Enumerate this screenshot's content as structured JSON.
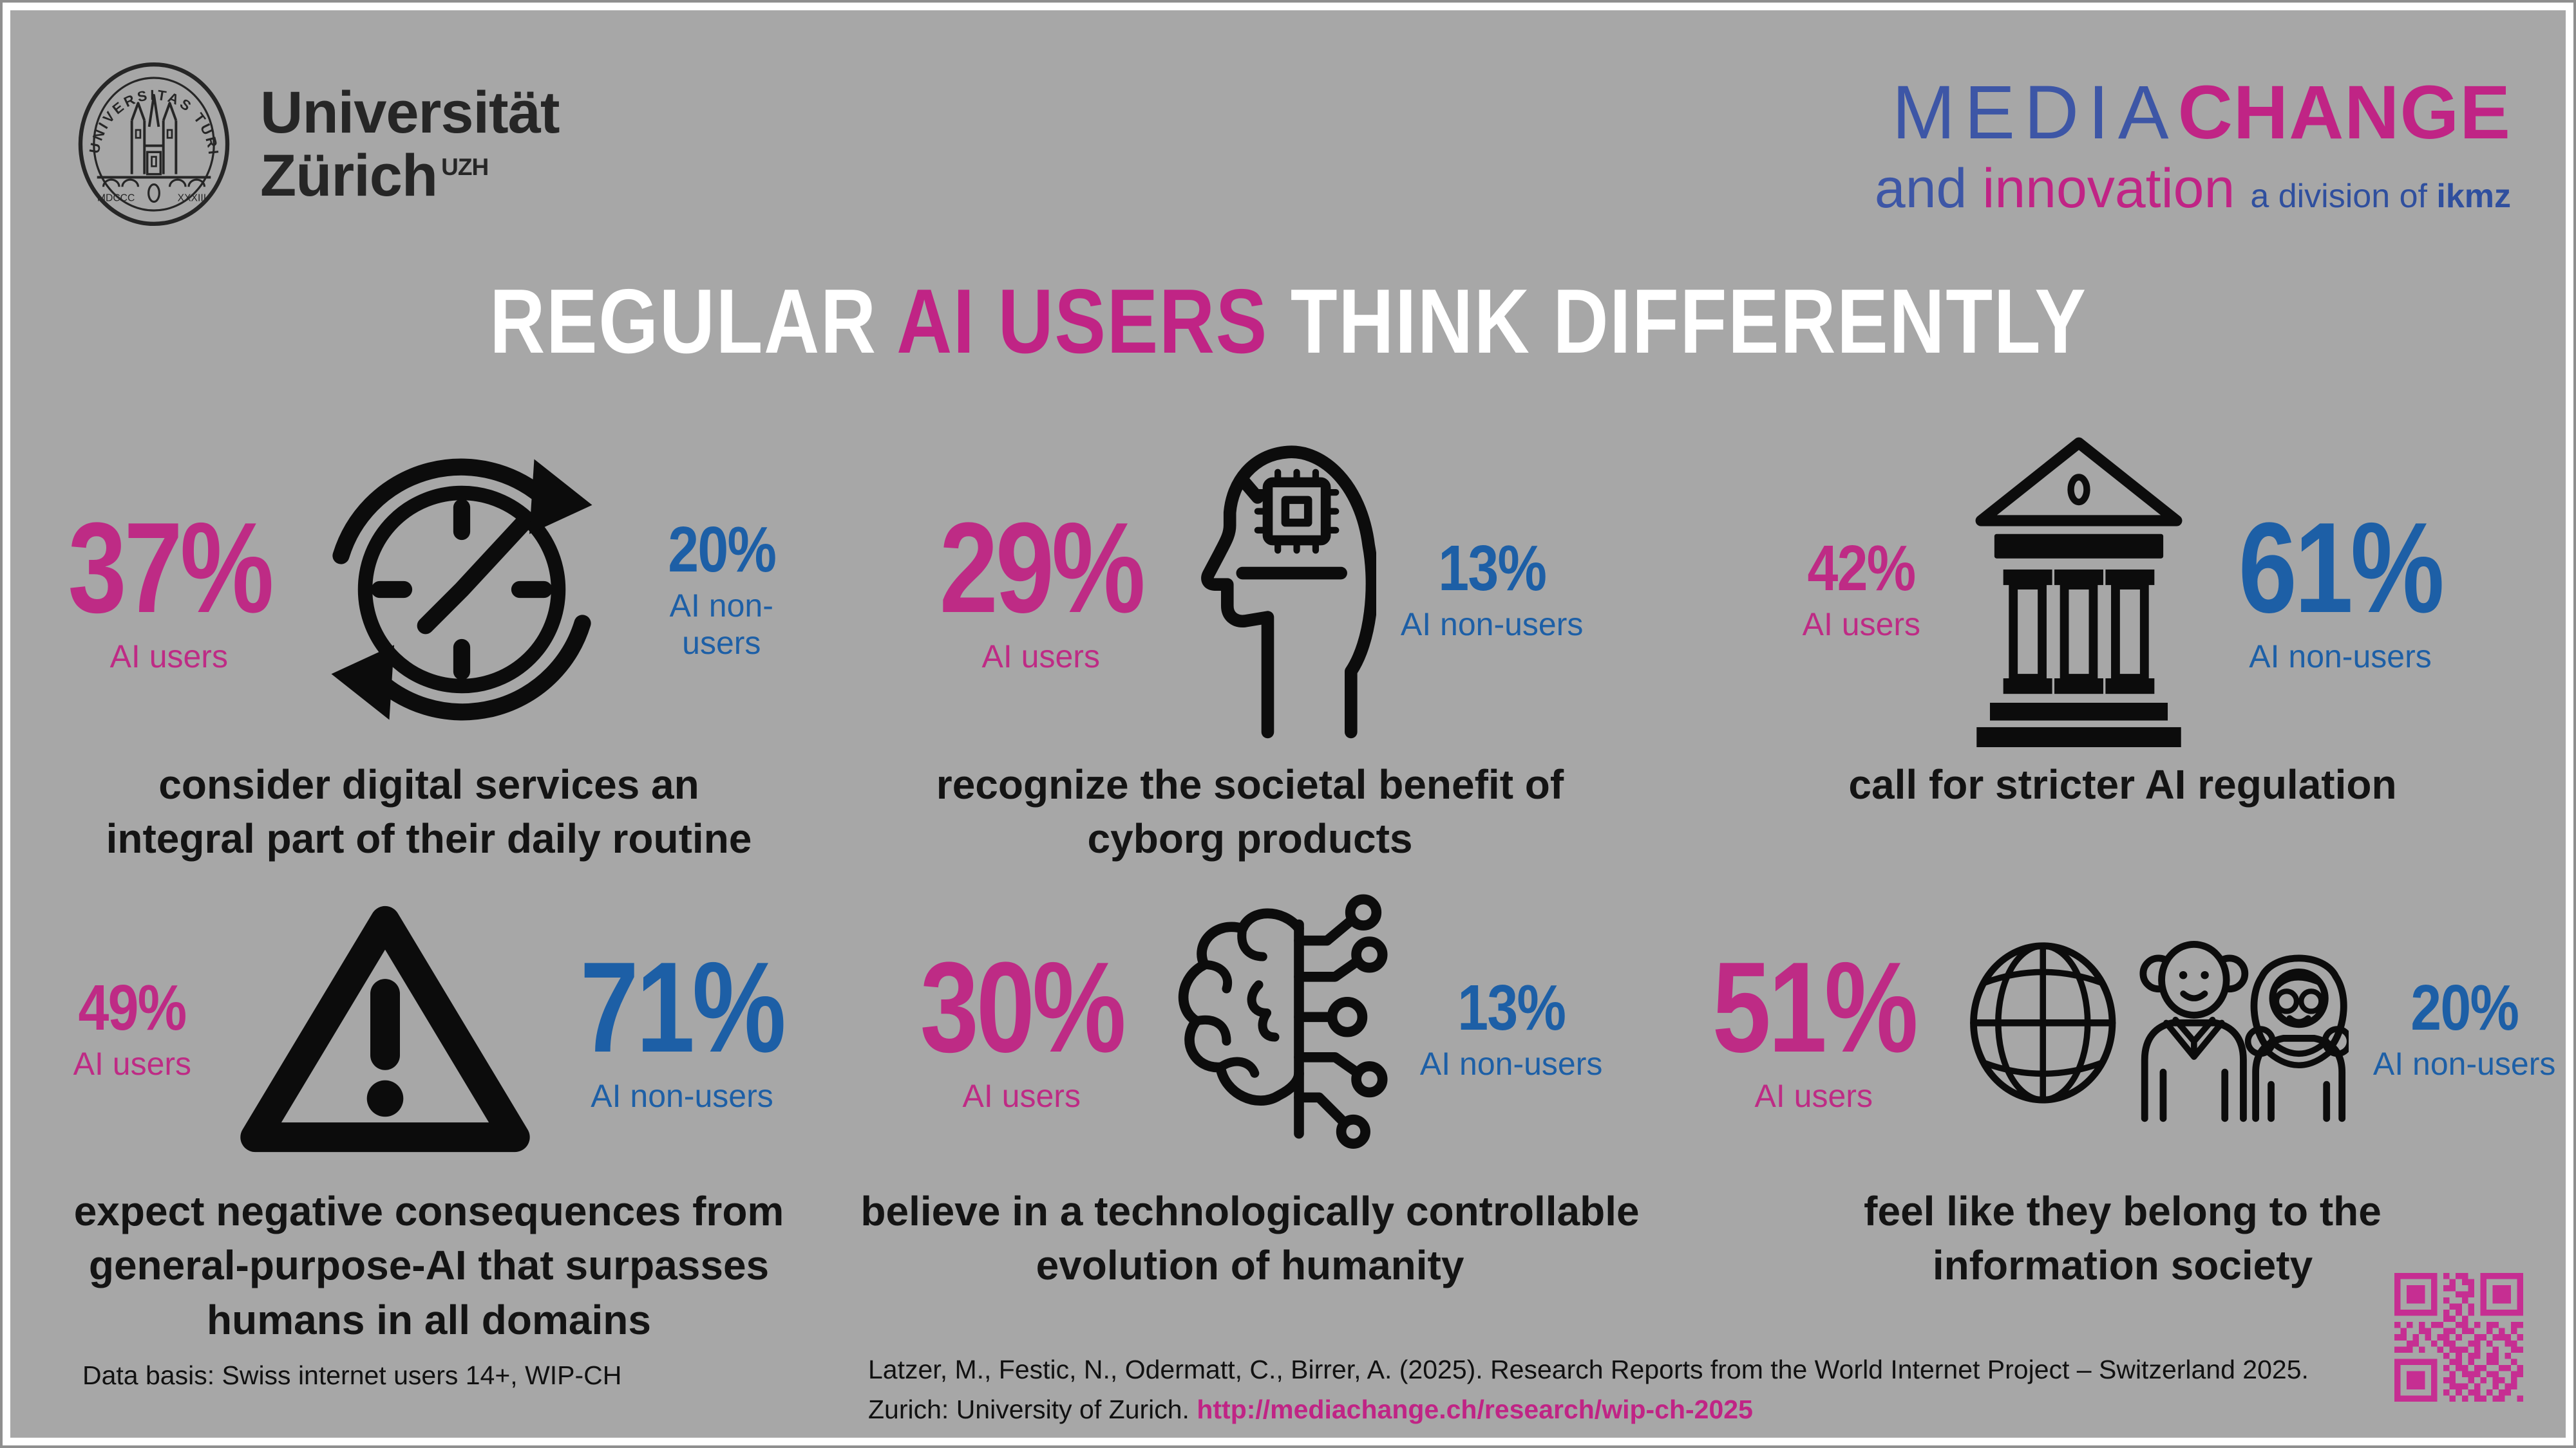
{
  "colors": {
    "background": "#a7a7a7",
    "frame": "#ffffff",
    "magenta": "#be2b85",
    "blue": "#1d5fa6",
    "logo_blue": "#3d56a6",
    "logo_magenta": "#c02485",
    "icon_black": "#0c0c0c",
    "title_white": "#ffffff"
  },
  "header": {
    "uzh": {
      "line1": "Universität",
      "line2": "Zürich",
      "superscript": "UZH",
      "seal_arc_text": "UNIVERSITAS  TURICENSIS",
      "seal_bottom_left": "MDCCC",
      "seal_bottom_right": "XXXIII"
    },
    "mediachange": {
      "media": "MEDIA",
      "change": "CHANGE",
      "and": "and ",
      "innovation": "innovation",
      "division": "a division of ",
      "ikmz": "ikmz"
    }
  },
  "title": {
    "part1": "REGULAR ",
    "highlight": "AI USERS",
    "part2": " THINK DIFFERENTLY"
  },
  "stats": [
    {
      "id": "daily-routine",
      "icon": "clock-cycle-icon",
      "users_value": "37%",
      "users_label": "AI users",
      "nonusers_value": "20%",
      "nonusers_label": "AI non-users",
      "emphasis": "users",
      "caption": "consider digital services an integral part of their daily routine"
    },
    {
      "id": "cyborg-products",
      "icon": "cyborg-head-icon",
      "users_value": "29%",
      "users_label": "AI users",
      "nonusers_value": "13%",
      "nonusers_label": "AI non-users",
      "emphasis": "users",
      "caption": "recognize the societal benefit of cyborg products"
    },
    {
      "id": "ai-regulation",
      "icon": "bank-building-icon",
      "users_value": "42%",
      "users_label": "AI users",
      "nonusers_value": "61%",
      "nonusers_label": "AI non-users",
      "emphasis": "nonusers",
      "caption": "call for stricter AI regulation"
    },
    {
      "id": "negative-consequences",
      "icon": "warning-triangle-icon",
      "users_value": "49%",
      "users_label": "AI users",
      "nonusers_value": "71%",
      "nonusers_label": "AI non-users",
      "emphasis": "nonusers",
      "caption": "expect negative consequences from general-purpose-AI that surpasses humans in all domains"
    },
    {
      "id": "controllable-evolution",
      "icon": "brain-circuit-icon",
      "users_value": "30%",
      "users_label": "AI users",
      "nonusers_value": "13%",
      "nonusers_label": "AI non-users",
      "emphasis": "users",
      "caption": "believe in a technologically controllable evolution of humanity"
    },
    {
      "id": "information-society",
      "icon": "globe-people-icon",
      "users_value": "51%",
      "users_label": "AI users",
      "nonusers_value": "20%",
      "nonusers_label": "AI non-users",
      "emphasis": "users",
      "caption": "feel like they belong to the information society"
    }
  ],
  "chart_data": {
    "type": "bar",
    "title": "REGULAR AI USERS THINK DIFFERENTLY",
    "categories": [
      "consider digital services an integral part of their daily routine",
      "recognize the societal benefit of cyborg products",
      "call for stricter AI regulation",
      "expect negative consequences from general-purpose-AI that surpasses humans in all domains",
      "believe in a technologically controllable evolution of humanity",
      "feel like they belong to the information society"
    ],
    "series": [
      {
        "name": "AI users",
        "color": "#be2b85",
        "values": [
          37,
          29,
          42,
          49,
          30,
          51
        ]
      },
      {
        "name": "AI non-users",
        "color": "#1d5fa6",
        "values": [
          20,
          13,
          61,
          71,
          13,
          20
        ]
      }
    ],
    "unit": "%",
    "ylim": [
      0,
      100
    ],
    "legend_position": "inline",
    "grid": false
  },
  "footer": {
    "data_basis": "Data basis: Swiss internet users 14+, WIP-CH",
    "citation_line1": "Latzer, M., Festic, N., Odermatt, C., Birrer, A. (2025). Research Reports from the World Internet Project – Switzerland 2025.",
    "citation_line2_prefix": "Zurich: University of Zurich. ",
    "citation_link": "http://mediachange.ch/research/wip-ch-2025"
  },
  "qr": {
    "color": "#c62e92",
    "matrix": [
      "111111101011001111111",
      "100000100101101000001",
      "101110101100101011101",
      "101110100011101011101",
      "101110101001001011101",
      "100000100110101000001",
      "111111101010101111111",
      "000000001101000000000",
      "101010110011010110011",
      "010011001101100101010",
      "110101011010011011101",
      "001100101100110100110",
      "111010010111010010011",
      "000000001010110110100",
      "111111100110100110010",
      "100000101011011001101",
      "101110100101110110011",
      "101110101100101011010",
      "101110100111010010110",
      "100000101010110101100",
      "111111100101011011001"
    ]
  }
}
